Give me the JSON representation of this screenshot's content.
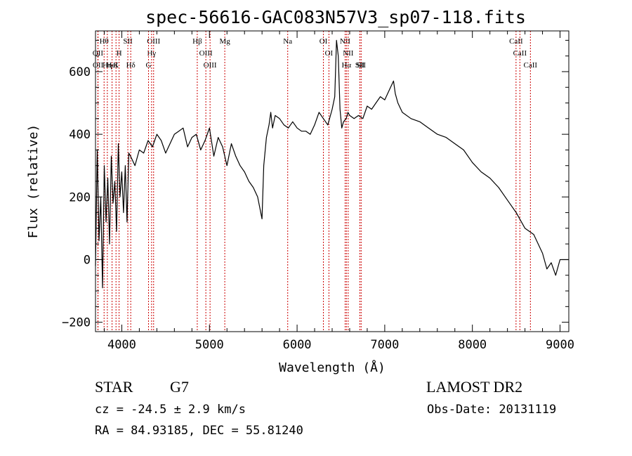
{
  "chart_data": {
    "type": "line",
    "title": "spec-56616-GAC083N57V3_sp07-118.fits",
    "xlabel": "Wavelength (Å)",
    "ylabel": "Flux (relative)",
    "xlim": [
      3700,
      9100
    ],
    "ylim": [
      -230,
      730
    ],
    "xticks": [
      4000,
      5000,
      6000,
      7000,
      8000,
      9000
    ],
    "yticks": [
      -200,
      0,
      200,
      400,
      600
    ],
    "grid": false,
    "line_color": "#000000",
    "marker_color": "#cc0000",
    "series": [
      {
        "x": [
          3700,
          3720,
          3740,
          3760,
          3780,
          3800,
          3820,
          3840,
          3860,
          3880,
          3900,
          3920,
          3940,
          3960,
          3980,
          4000,
          4020,
          4040,
          4060,
          4080,
          4100,
          4150,
          4200,
          4250,
          4300,
          4350,
          4400,
          4450,
          4500,
          4550,
          4600,
          4650,
          4700,
          4750,
          4800,
          4850,
          4900,
          4950,
          5000,
          5050,
          5100,
          5150,
          5200,
          5250,
          5300,
          5350,
          5400,
          5450,
          5500,
          5550,
          5600,
          5620,
          5650,
          5680,
          5700,
          5720,
          5750,
          5800,
          5850,
          5900,
          5950,
          6000,
          6050,
          6100,
          6150,
          6200,
          6250,
          6300,
          6350,
          6400,
          6430,
          6450,
          6470,
          6490,
          6510,
          6530,
          6560,
          6580,
          6600,
          6650,
          6700,
          6750,
          6800,
          6850,
          6900,
          6950,
          7000,
          7050,
          7100,
          7120,
          7150,
          7200,
          7300,
          7400,
          7500,
          7600,
          7700,
          7800,
          7900,
          8000,
          8100,
          8200,
          8300,
          8400,
          8500,
          8600,
          8700,
          8800,
          8850,
          8900,
          8950,
          9000,
          9050,
          9100
        ],
        "y": [
          -20,
          350,
          60,
          200,
          -90,
          300,
          120,
          260,
          50,
          330,
          180,
          250,
          90,
          370,
          200,
          280,
          150,
          300,
          120,
          340,
          330,
          300,
          350,
          340,
          380,
          360,
          400,
          380,
          340,
          370,
          400,
          410,
          420,
          360,
          390,
          400,
          350,
          380,
          420,
          330,
          390,
          360,
          300,
          370,
          330,
          300,
          280,
          250,
          230,
          200,
          130,
          300,
          390,
          430,
          470,
          420,
          460,
          450,
          430,
          420,
          440,
          420,
          410,
          410,
          400,
          430,
          470,
          450,
          430,
          480,
          520,
          700,
          650,
          480,
          420,
          440,
          450,
          470,
          460,
          450,
          460,
          450,
          490,
          480,
          500,
          520,
          510,
          540,
          570,
          530,
          500,
          470,
          450,
          440,
          420,
          400,
          390,
          370,
          350,
          310,
          280,
          260,
          230,
          190,
          150,
          100,
          80,
          20,
          -30,
          -10,
          -50,
          0,
          0,
          0
        ]
      }
    ],
    "lines": [
      {
        "name": "Hθ",
        "x": 3798
      },
      {
        "name": "OII",
        "x": 3727
      },
      {
        "name": "OII",
        "x": 3729
      },
      {
        "name": "Hη",
        "x": 3835
      },
      {
        "name": "HeI",
        "x": 3889
      },
      {
        "name": "K",
        "x": 3934
      },
      {
        "name": "H",
        "x": 3969
      },
      {
        "name": "SII",
        "x": 4069
      },
      {
        "name": "Hδ",
        "x": 4102
      },
      {
        "name": "OIII",
        "x": 4363
      },
      {
        "name": "Hγ",
        "x": 4340
      },
      {
        "name": "G",
        "x": 4305
      },
      {
        "name": "Hβ",
        "x": 4861
      },
      {
        "name": "OIII",
        "x": 4959
      },
      {
        "name": "OIII",
        "x": 5007
      },
      {
        "name": "Mg",
        "x": 5175
      },
      {
        "name": "Na",
        "x": 5893
      },
      {
        "name": "OI",
        "x": 6300
      },
      {
        "name": "OI",
        "x": 6363
      },
      {
        "name": "NII",
        "x": 6548
      },
      {
        "name": "Hα",
        "x": 6563
      },
      {
        "name": "NII",
        "x": 6583
      },
      {
        "name": "SII",
        "x": 6716
      },
      {
        "name": "SII",
        "x": 6731
      },
      {
        "name": "CaII",
        "x": 8498
      },
      {
        "name": "CaII",
        "x": 8542
      },
      {
        "name": "CaII",
        "x": 8662
      }
    ]
  },
  "info": {
    "class_label": "STAR",
    "subclass_label": "G7",
    "survey": "LAMOST DR2",
    "redshift": "cz = -24.5 ± 2.9 km/s",
    "obs_date": "Obs-Date: 20131119",
    "coordinates": "RA =  84.93185, DEC =  55.81240"
  }
}
